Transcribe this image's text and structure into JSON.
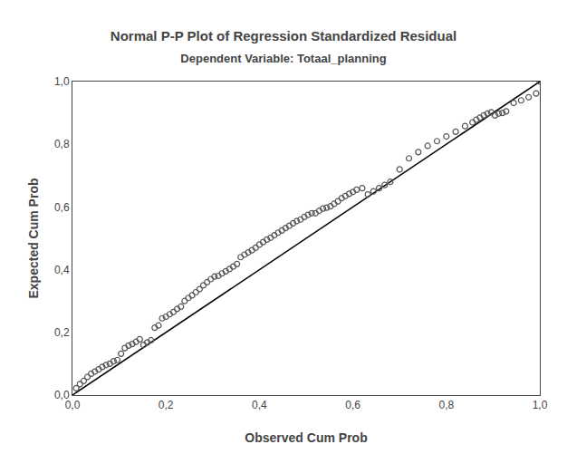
{
  "chart_data": {
    "type": "scatter",
    "title": "Normal P-P Plot of Regression Standardized Residual",
    "subtitle": "Dependent Variable: Totaal_planning",
    "xlabel": "Observed Cum Prob",
    "ylabel": "Expected Cum Prob",
    "xlim": [
      0.0,
      1.0
    ],
    "ylim": [
      0.0,
      1.0
    ],
    "xticks": [
      {
        "value": 0.0,
        "label": "0,0"
      },
      {
        "value": 0.2,
        "label": "0,2"
      },
      {
        "value": 0.4,
        "label": "0,4"
      },
      {
        "value": 0.6,
        "label": "0,6"
      },
      {
        "value": 0.8,
        "label": "0,8"
      },
      {
        "value": 1.0,
        "label": "1,0"
      }
    ],
    "yticks": [
      {
        "value": 0.0,
        "label": "0,0"
      },
      {
        "value": 0.2,
        "label": "0,2"
      },
      {
        "value": 0.4,
        "label": "0,4"
      },
      {
        "value": 0.6,
        "label": "0,6"
      },
      {
        "value": 0.8,
        "label": "0,8"
      },
      {
        "value": 1.0,
        "label": "1,0"
      }
    ],
    "grid": false,
    "series": [
      {
        "type": "scatter",
        "marker": "circle-open",
        "color": "#555555",
        "x": [
          0.008,
          0.016,
          0.024,
          0.032,
          0.04,
          0.048,
          0.056,
          0.064,
          0.072,
          0.08,
          0.088,
          0.096,
          0.104,
          0.112,
          0.12,
          0.128,
          0.136,
          0.144,
          0.152,
          0.16,
          0.168,
          0.176,
          0.184,
          0.192,
          0.2,
          0.208,
          0.216,
          0.224,
          0.232,
          0.24,
          0.248,
          0.256,
          0.264,
          0.272,
          0.28,
          0.288,
          0.296,
          0.304,
          0.312,
          0.32,
          0.328,
          0.336,
          0.344,
          0.352,
          0.36,
          0.368,
          0.376,
          0.384,
          0.392,
          0.4,
          0.408,
          0.416,
          0.424,
          0.432,
          0.44,
          0.448,
          0.456,
          0.464,
          0.472,
          0.48,
          0.488,
          0.496,
          0.504,
          0.512,
          0.52,
          0.528,
          0.536,
          0.544,
          0.552,
          0.56,
          0.568,
          0.576,
          0.584,
          0.592,
          0.6,
          0.608,
          0.62,
          0.632,
          0.644,
          0.656,
          0.668,
          0.68,
          0.7,
          0.72,
          0.74,
          0.76,
          0.78,
          0.8,
          0.82,
          0.84,
          0.856,
          0.864,
          0.872,
          0.88,
          0.888,
          0.896,
          0.904,
          0.912,
          0.92,
          0.928,
          0.944,
          0.96,
          0.976,
          0.992,
          1.0
        ],
        "values": [
          0.022,
          0.035,
          0.045,
          0.058,
          0.068,
          0.075,
          0.082,
          0.09,
          0.096,
          0.1,
          0.108,
          0.112,
          0.132,
          0.15,
          0.158,
          0.163,
          0.17,
          0.178,
          0.16,
          0.168,
          0.175,
          0.215,
          0.222,
          0.245,
          0.25,
          0.258,
          0.265,
          0.275,
          0.282,
          0.3,
          0.31,
          0.318,
          0.328,
          0.338,
          0.35,
          0.36,
          0.37,
          0.378,
          0.38,
          0.388,
          0.395,
          0.402,
          0.41,
          0.418,
          0.44,
          0.448,
          0.455,
          0.462,
          0.47,
          0.48,
          0.488,
          0.496,
          0.502,
          0.51,
          0.518,
          0.525,
          0.533,
          0.54,
          0.548,
          0.555,
          0.56,
          0.568,
          0.575,
          0.58,
          0.58,
          0.588,
          0.595,
          0.598,
          0.602,
          0.61,
          0.618,
          0.628,
          0.635,
          0.642,
          0.648,
          0.655,
          0.66,
          0.64,
          0.65,
          0.66,
          0.67,
          0.68,
          0.72,
          0.755,
          0.775,
          0.795,
          0.81,
          0.825,
          0.84,
          0.858,
          0.87,
          0.878,
          0.885,
          0.892,
          0.898,
          0.902,
          0.892,
          0.898,
          0.9,
          0.905,
          0.932,
          0.94,
          0.95,
          0.962,
          1.0
        ]
      },
      {
        "type": "line",
        "line_style": "solid",
        "color": "#000000",
        "x": [
          0,
          1
        ],
        "values": [
          0,
          1
        ]
      }
    ]
  }
}
